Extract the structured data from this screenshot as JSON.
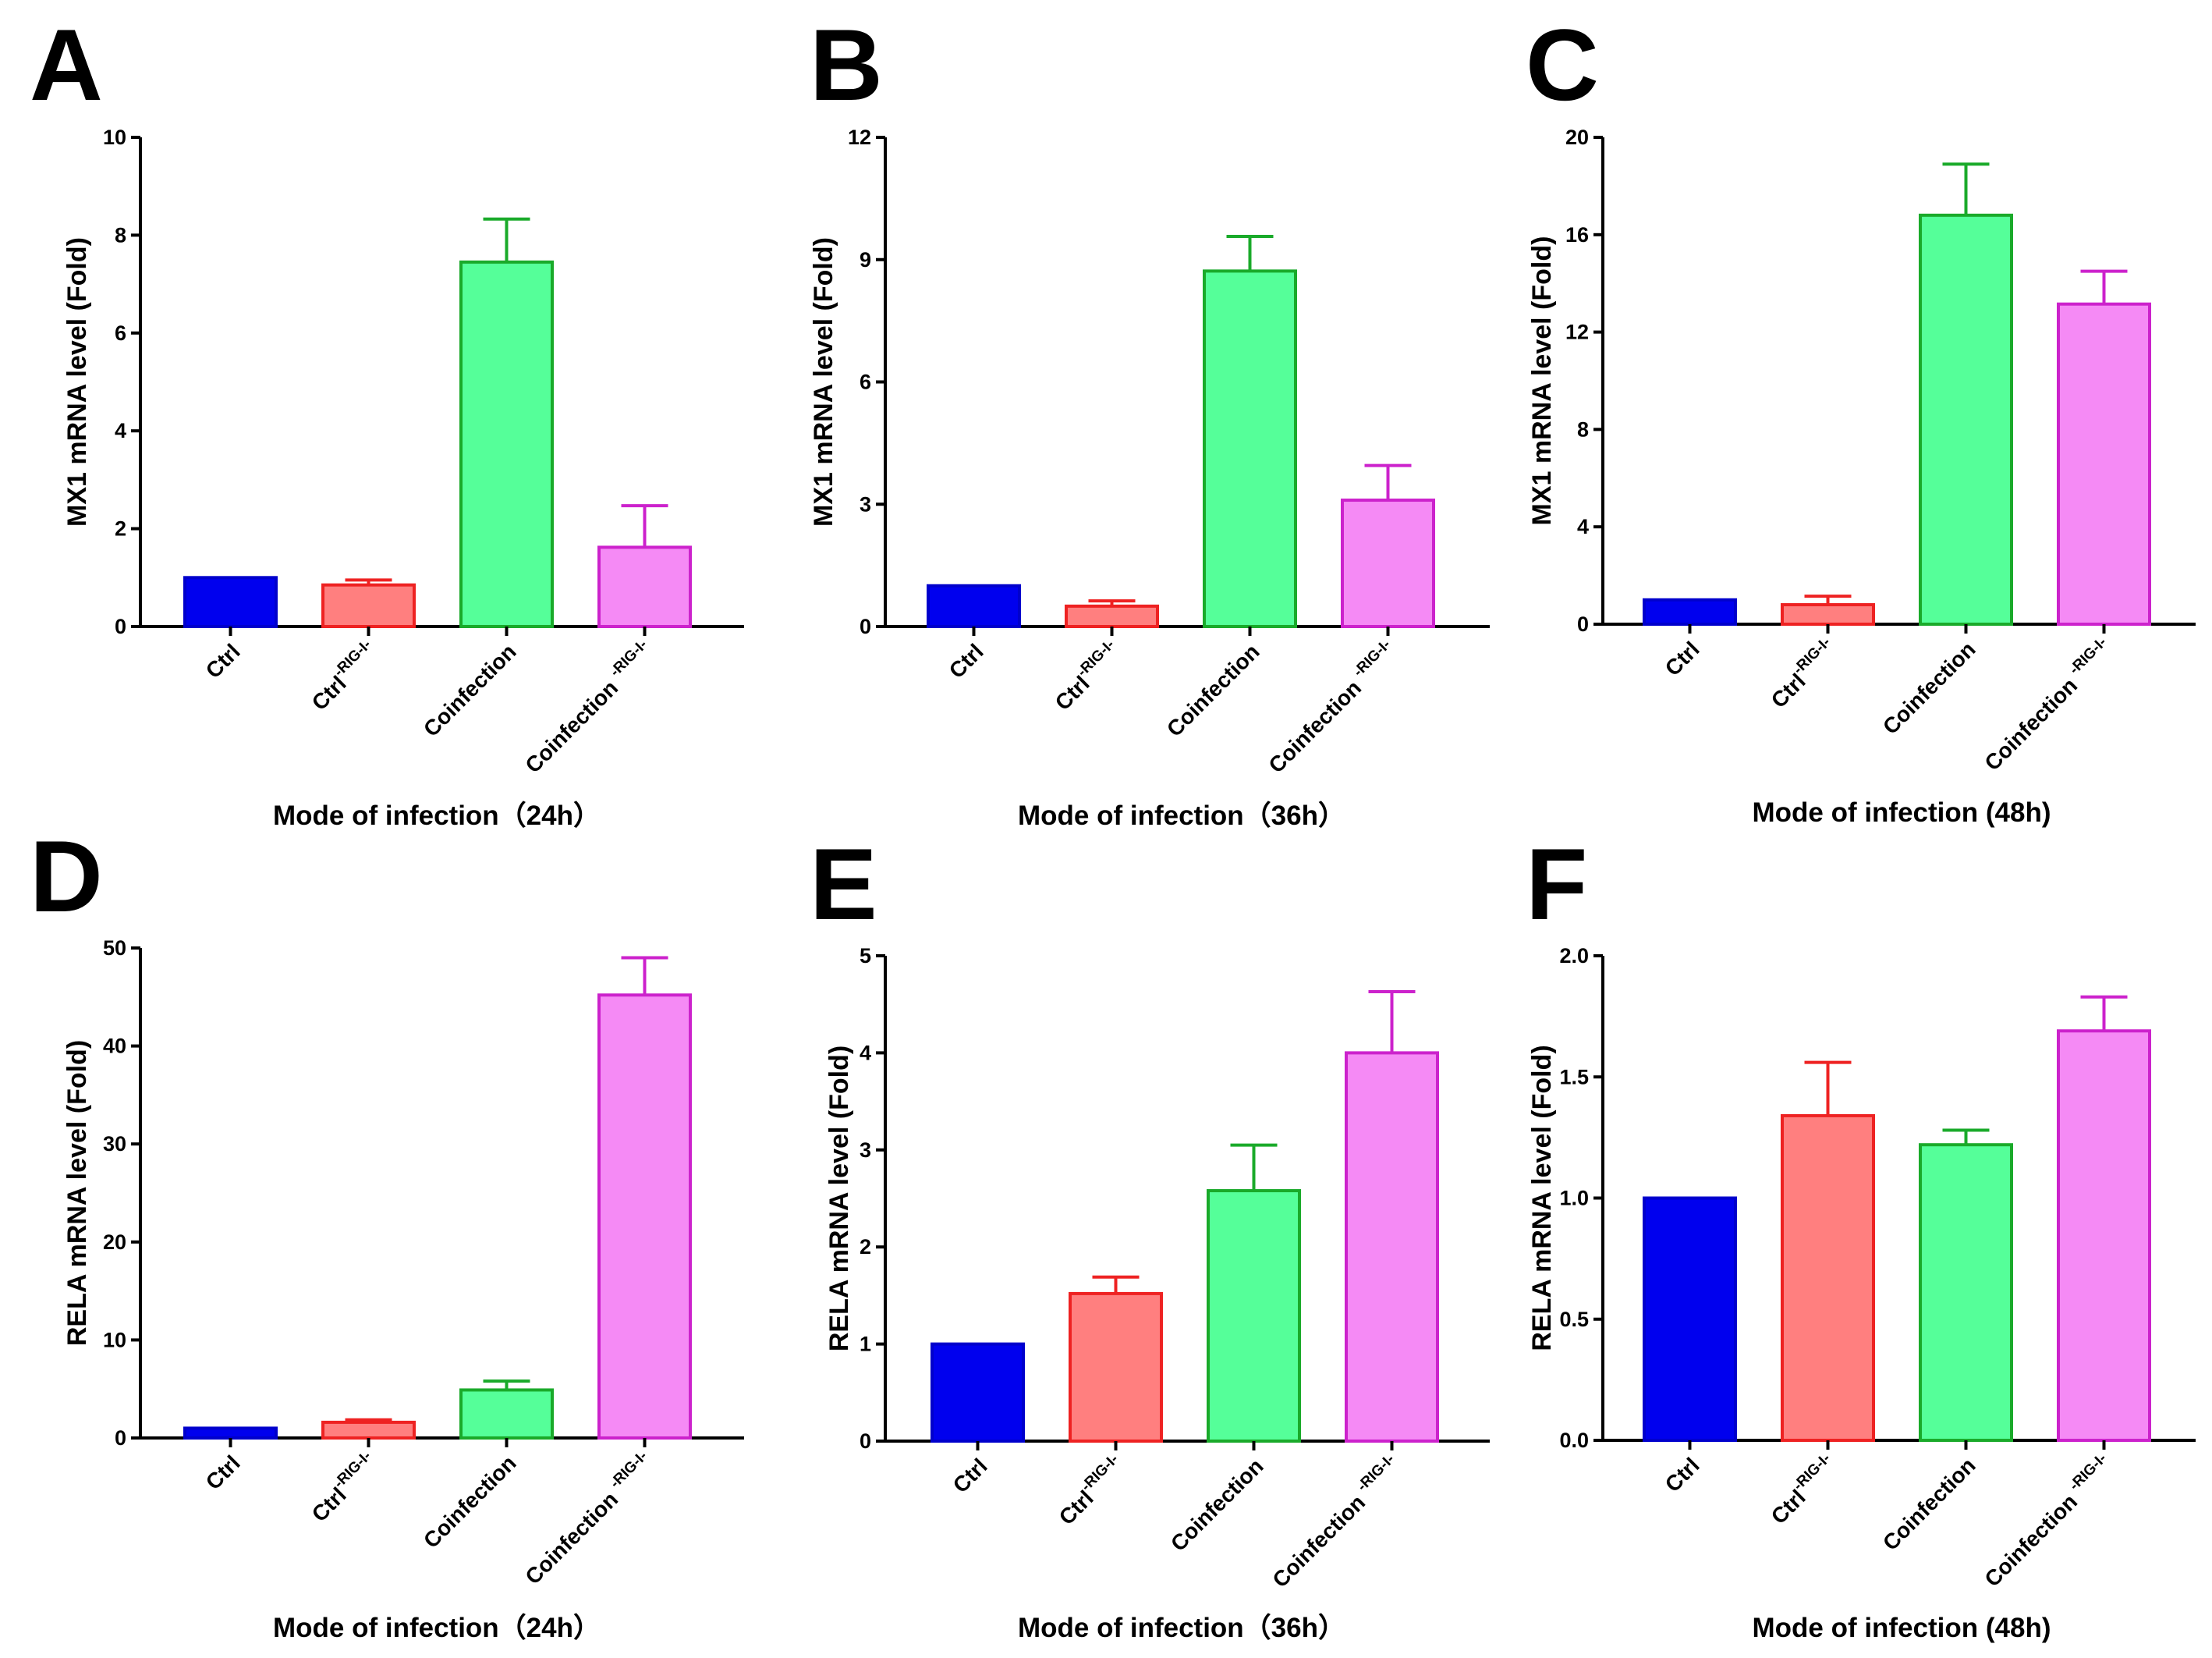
{
  "figure": {
    "panels_count": 6
  },
  "chart_data": [
    {
      "panel": "A",
      "type": "bar",
      "ylabel": "MX1 mRNA level (Fold)",
      "xlabel": "Mode of infection（24h）",
      "ylim": [
        0,
        10
      ],
      "yticks": [
        "0",
        "2",
        "4",
        "6",
        "8",
        "10"
      ],
      "categories": [
        {
          "name": "Ctrl",
          "sup": ""
        },
        {
          "name": "Ctrl",
          "sup": "-RIG-I-"
        },
        {
          "name": "Coinfection",
          "sup": ""
        },
        {
          "name": "Coinfection ",
          "sup": "-RIG-I-"
        }
      ],
      "values": [
        1.0,
        0.85,
        7.45,
        1.62
      ],
      "errors": [
        0,
        0.1,
        0.88,
        0.85
      ],
      "colors": [
        "blue",
        "red",
        "green",
        "magenta"
      ]
    },
    {
      "panel": "B",
      "type": "bar",
      "ylabel": "MX1 mRNA level (Fold)",
      "xlabel": "Mode of infection（36h）",
      "ylim": [
        0,
        12
      ],
      "yticks": [
        "0",
        "3",
        "6",
        "9",
        "12"
      ],
      "categories": [
        {
          "name": "Ctrl",
          "sup": ""
        },
        {
          "name": "Ctrl",
          "sup": "-RIG-I-"
        },
        {
          "name": "Coinfection",
          "sup": ""
        },
        {
          "name": "Coinfection ",
          "sup": "-RIG-I-"
        }
      ],
      "values": [
        1.0,
        0.5,
        8.72,
        3.1
      ],
      "errors": [
        0,
        0.13,
        0.85,
        0.85
      ],
      "colors": [
        "blue",
        "red",
        "green",
        "magenta"
      ]
    },
    {
      "panel": "C",
      "type": "bar",
      "ylabel": "MX1 mRNA level (Fold)",
      "xlabel": "Mode of infection (48h)",
      "ylim": [
        0,
        20
      ],
      "yticks": [
        "0",
        "4",
        "8",
        "12",
        "16",
        "20"
      ],
      "categories": [
        {
          "name": "Ctrl",
          "sup": ""
        },
        {
          "name": "Ctrl",
          "sup": "-RIG-I-"
        },
        {
          "name": "Coinfection",
          "sup": ""
        },
        {
          "name": "Coinfection ",
          "sup": "-RIG-I-"
        }
      ],
      "values": [
        1.0,
        0.8,
        16.8,
        13.15
      ],
      "errors": [
        0,
        0.35,
        2.1,
        1.35
      ],
      "colors": [
        "blue",
        "red",
        "green",
        "magenta"
      ]
    },
    {
      "panel": "D",
      "type": "bar",
      "ylabel": "RELA mRNA level (Fold)",
      "xlabel": "Mode of infection（24h）",
      "ylim": [
        0,
        50
      ],
      "yticks": [
        "0",
        "10",
        "20",
        "30",
        "40",
        "50"
      ],
      "categories": [
        {
          "name": "Ctrl",
          "sup": ""
        },
        {
          "name": "Ctrl",
          "sup": "-RIG-I-"
        },
        {
          "name": "Coinfection",
          "sup": ""
        },
        {
          "name": "Coinfection ",
          "sup": "-RIG-I-"
        }
      ],
      "values": [
        1.0,
        1.6,
        4.9,
        45.2
      ],
      "errors": [
        0,
        0.25,
        0.9,
        3.8
      ],
      "colors": [
        "blue",
        "red",
        "green",
        "magenta"
      ]
    },
    {
      "panel": "E",
      "type": "bar",
      "ylabel": "RELA mRNA level (Fold)",
      "xlabel": "Mode of infection（36h）",
      "ylim": [
        0,
        5
      ],
      "yticks": [
        "0",
        "1",
        "2",
        "3",
        "4",
        "5"
      ],
      "categories": [
        {
          "name": "Ctrl",
          "sup": ""
        },
        {
          "name": "Ctrl",
          "sup": "-RIG-I-"
        },
        {
          "name": "Coinfection",
          "sup": ""
        },
        {
          "name": "Coinfection ",
          "sup": "-RIG-I-"
        }
      ],
      "values": [
        1.0,
        1.52,
        2.58,
        4.0
      ],
      "errors": [
        0,
        0.17,
        0.47,
        0.63
      ],
      "colors": [
        "blue",
        "red",
        "green",
        "magenta"
      ]
    },
    {
      "panel": "F",
      "type": "bar",
      "ylabel": "RELA mRNA level (Fold)",
      "xlabel": "Mode of infection (48h)",
      "ylim": [
        0,
        2.0
      ],
      "yticks": [
        "0.0",
        "0.5",
        "1.0",
        "1.5",
        "2.0"
      ],
      "categories": [
        {
          "name": "Ctrl",
          "sup": ""
        },
        {
          "name": "Ctrl",
          "sup": "-RIG-I-"
        },
        {
          "name": "Coinfection",
          "sup": ""
        },
        {
          "name": "Coinfection ",
          "sup": "-RIG-I-"
        }
      ],
      "values": [
        1.0,
        1.34,
        1.22,
        1.69
      ],
      "errors": [
        0,
        0.22,
        0.06,
        0.14
      ],
      "colors": [
        "blue",
        "red",
        "green",
        "magenta"
      ]
    }
  ],
  "colors": {
    "blue": {
      "fill": "#0000ee",
      "stroke": "#0000cc"
    },
    "red": {
      "fill": "#ff7f7f",
      "stroke": "#ee2222"
    },
    "green": {
      "fill": "#55ff99",
      "stroke": "#1aaa2a"
    },
    "magenta": {
      "fill": "#f58af5",
      "stroke": "#cc22cc"
    }
  }
}
